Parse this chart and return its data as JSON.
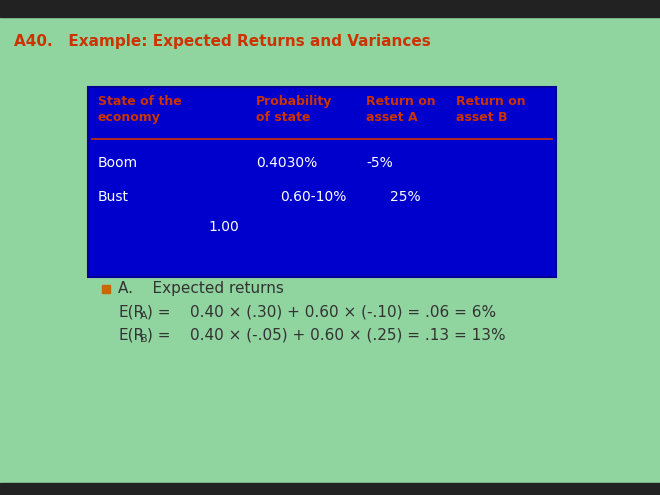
{
  "title": "A40.   Example: Expected Returns and Variances",
  "title_color": "#cc3300",
  "title_fontsize": 11,
  "bg_color": "#90d4a0",
  "table_bg_color": "#0000cc",
  "table_border_color": "#000099",
  "table_text_color": "#cc3300",
  "table_body_color": "#ffffff",
  "bullet_color": "#cc6600",
  "bullet_label": "A.    Expected returns",
  "text_color_body": "#333333",
  "separator_line_color": "#cc3300",
  "header_col0": "State of the\neconomy",
  "header_col1": "Probability\nof state",
  "header_col2": "Return on\nasset A",
  "header_col3": "Return on\nasset B"
}
